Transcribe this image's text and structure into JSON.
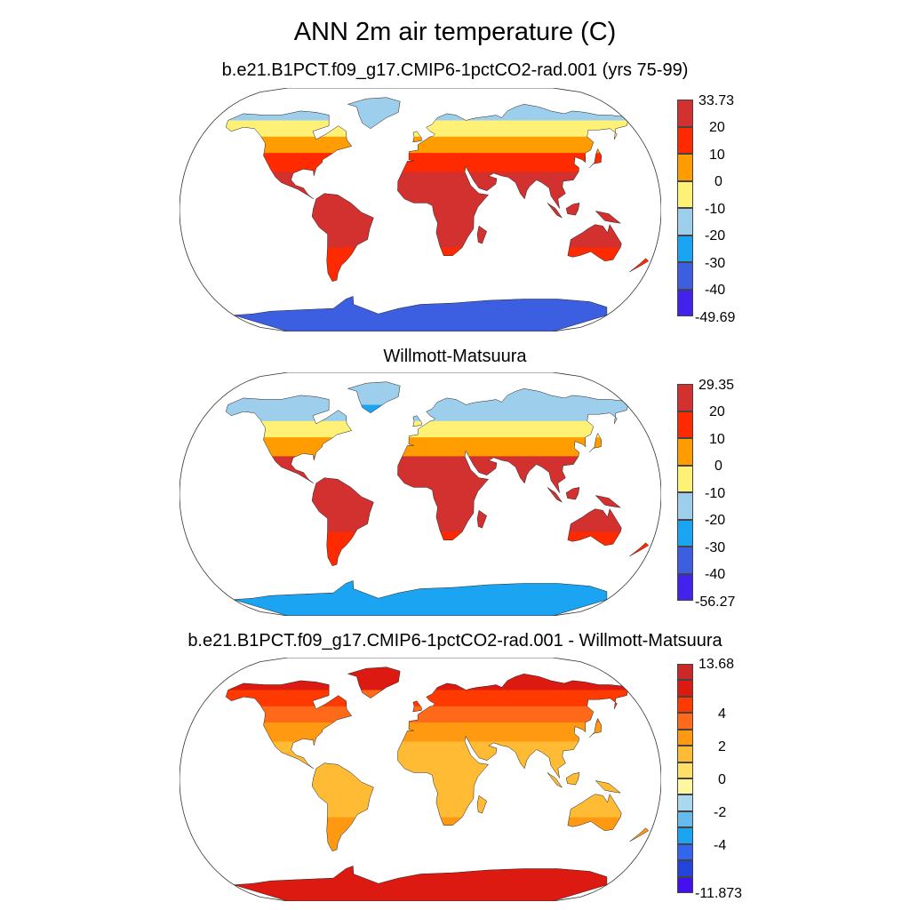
{
  "title": "ANN 2m air temperature (C)",
  "panels": [
    {
      "name": "model",
      "title": "b.e21.B1PCT.f09_g17.CMIP6-1pctCO2-rad.001 (yrs 75-99)",
      "colorbar": {
        "colors": [
          "#4422ee",
          "#3b5fe0",
          "#1aa4f2",
          "#9dcfec",
          "#fff176",
          "#ff9d00",
          "#ff2a00",
          "#d33030"
        ],
        "labels": [
          "33.73",
          "20",
          "10",
          "0",
          "-10",
          "-20",
          "-30",
          "-40",
          "-49.69"
        ]
      },
      "levels": {
        "arctic": 3,
        "boreal": 4,
        "northmid": 5,
        "temperate": 6,
        "tropics": 7,
        "southmid": 6,
        "antarctica": 1
      }
    },
    {
      "name": "observations",
      "title": "Willmott-Matsuura",
      "colorbar": {
        "colors": [
          "#4422ee",
          "#3b5fe0",
          "#1aa4f2",
          "#9dcfec",
          "#fff176",
          "#ff9d00",
          "#ff2a00",
          "#d33030"
        ],
        "labels": [
          "29.35",
          "20",
          "10",
          "0",
          "-10",
          "-20",
          "-30",
          "-40",
          "-56.27"
        ]
      },
      "levels": {
        "arctic": 3,
        "boreal": 3,
        "northmid": 4,
        "temperate": 5,
        "tropics": 7,
        "southmid": 6,
        "antarctica": 2
      }
    },
    {
      "name": "difference",
      "title": "b.e21.B1PCT.f09_g17.CMIP6-1pctCO2-rad.001 - Willmott-Matsuura",
      "colorbar": {
        "colors": [
          "#4411ee",
          "#2244dd",
          "#3366ee",
          "#1aa4f2",
          "#66bbee",
          "#aad8ee",
          "#fff7a0",
          "#ffe066",
          "#ffbb33",
          "#ff9911",
          "#ff6a1a",
          "#ff3a00",
          "#dd1a11",
          "#cc2828"
        ],
        "labels": [
          "13.68",
          "4",
          "2",
          "0",
          "-2",
          "-4",
          "-11.873"
        ]
      },
      "levels": {
        "arctic": 12,
        "boreal": 11,
        "northmid": 10,
        "temperate": 9,
        "tropics": 8,
        "southmid": 9,
        "antarctica": 12
      }
    }
  ]
}
